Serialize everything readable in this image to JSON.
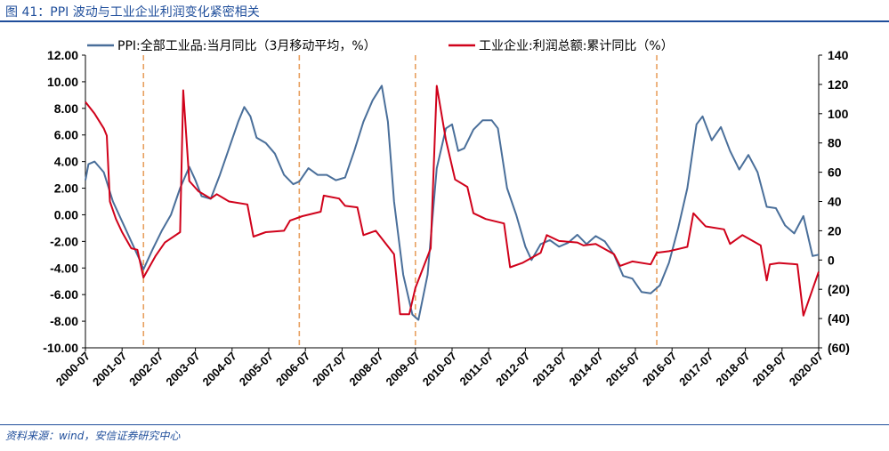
{
  "figure": {
    "title": "图 41：PPI 波动与工业企业利润变化紧密相关",
    "source": "资料来源：wind，安信证券研究中心"
  },
  "chart_data": {
    "type": "line",
    "colors": {
      "ppi": "#4a6f9a",
      "profit": "#d0021b",
      "guide": "#e8a060",
      "negative_right": "#d0021b"
    },
    "left_axis": {
      "ylim": [
        -10,
        12
      ],
      "ticks": [
        "12.00",
        "10.00",
        "8.00",
        "6.00",
        "4.00",
        "2.00",
        "0.00",
        "-2.00",
        "-4.00",
        "-6.00",
        "-8.00",
        "-10.00"
      ]
    },
    "right_axis": {
      "ylim": [
        -60,
        140
      ],
      "ticks": [
        "140",
        "120",
        "100",
        "80",
        "60",
        "40",
        "20",
        "0",
        "(20)",
        "(40)",
        "(60)"
      ]
    },
    "x_ticks": [
      "2000-07",
      "2001-07",
      "2002-07",
      "2003-07",
      "2004-07",
      "2005-07",
      "2006-07",
      "2007-07",
      "2008-07",
      "2009-07",
      "2010-07",
      "2011-07",
      "2012-07",
      "2013-07",
      "2014-07",
      "2015-07",
      "2016-07",
      "2017-07",
      "2018-07",
      "2019-07",
      "2020-07"
    ],
    "vertical_guides": [
      "2002-02",
      "2006-05",
      "2009-07",
      "2016-02"
    ],
    "legend": "top",
    "series": [
      {
        "name": "PPI:全部工业品:当月同比（3月移动平均，%）",
        "axis": "left",
        "points": [
          [
            "2000-07",
            2.6
          ],
          [
            "2000-08",
            3.8
          ],
          [
            "2000-10",
            4.0
          ],
          [
            "2001-01",
            3.2
          ],
          [
            "2001-04",
            1.0
          ],
          [
            "2001-07",
            -0.5
          ],
          [
            "2001-10",
            -2.0
          ],
          [
            "2002-01",
            -3.5
          ],
          [
            "2002-02",
            -4.1
          ],
          [
            "2002-05",
            -2.6
          ],
          [
            "2002-08",
            -1.2
          ],
          [
            "2002-11",
            0.0
          ],
          [
            "2003-02",
            2.0
          ],
          [
            "2003-05",
            3.6
          ],
          [
            "2003-07",
            2.6
          ],
          [
            "2003-09",
            1.4
          ],
          [
            "2003-12",
            1.2
          ],
          [
            "2004-03",
            3.0
          ],
          [
            "2004-06",
            5.0
          ],
          [
            "2004-09",
            7.0
          ],
          [
            "2004-11",
            8.1
          ],
          [
            "2005-01",
            7.4
          ],
          [
            "2005-03",
            5.8
          ],
          [
            "2005-06",
            5.4
          ],
          [
            "2005-09",
            4.6
          ],
          [
            "2005-12",
            3.0
          ],
          [
            "2006-03",
            2.3
          ],
          [
            "2006-05",
            2.5
          ],
          [
            "2006-08",
            3.5
          ],
          [
            "2006-11",
            3.0
          ],
          [
            "2007-02",
            3.0
          ],
          [
            "2007-05",
            2.6
          ],
          [
            "2007-08",
            2.8
          ],
          [
            "2007-11",
            4.8
          ],
          [
            "2008-02",
            7.0
          ],
          [
            "2008-05",
            8.6
          ],
          [
            "2008-08",
            9.7
          ],
          [
            "2008-10",
            7.0
          ],
          [
            "2008-12",
            1.0
          ],
          [
            "2009-03",
            -4.5
          ],
          [
            "2009-06",
            -7.5
          ],
          [
            "2009-08",
            -7.9
          ],
          [
            "2009-11",
            -4.5
          ],
          [
            "2010-02",
            3.5
          ],
          [
            "2010-05",
            6.5
          ],
          [
            "2010-07",
            6.8
          ],
          [
            "2010-09",
            4.8
          ],
          [
            "2010-11",
            5.0
          ],
          [
            "2011-02",
            6.4
          ],
          [
            "2011-05",
            7.1
          ],
          [
            "2011-08",
            7.1
          ],
          [
            "2011-10",
            6.5
          ],
          [
            "2012-01",
            2.0
          ],
          [
            "2012-04",
            0.0
          ],
          [
            "2012-07",
            -2.4
          ],
          [
            "2012-09",
            -3.4
          ],
          [
            "2012-12",
            -2.2
          ],
          [
            "2013-03",
            -1.9
          ],
          [
            "2013-06",
            -2.4
          ],
          [
            "2013-09",
            -2.1
          ],
          [
            "2013-12",
            -1.5
          ],
          [
            "2014-03",
            -2.2
          ],
          [
            "2014-06",
            -1.6
          ],
          [
            "2014-09",
            -2.0
          ],
          [
            "2014-12",
            -3.0
          ],
          [
            "2015-03",
            -4.6
          ],
          [
            "2015-06",
            -4.8
          ],
          [
            "2015-09",
            -5.8
          ],
          [
            "2015-12",
            -5.9
          ],
          [
            "2016-03",
            -5.3
          ],
          [
            "2016-06",
            -3.6
          ],
          [
            "2016-09",
            -1.0
          ],
          [
            "2016-12",
            2.0
          ],
          [
            "2017-03",
            6.8
          ],
          [
            "2017-05",
            7.4
          ],
          [
            "2017-08",
            5.6
          ],
          [
            "2017-11",
            6.6
          ],
          [
            "2018-02",
            4.8
          ],
          [
            "2018-05",
            3.4
          ],
          [
            "2018-08",
            4.5
          ],
          [
            "2018-11",
            3.2
          ],
          [
            "2019-02",
            0.6
          ],
          [
            "2019-05",
            0.5
          ],
          [
            "2019-08",
            -0.8
          ],
          [
            "2019-11",
            -1.4
          ],
          [
            "2020-02",
            -0.1
          ],
          [
            "2020-05",
            -3.1
          ],
          [
            "2020-07",
            -3.0
          ]
        ]
      },
      {
        "name": "工业企业:利润总额:累计同比（%）",
        "axis": "right",
        "points": [
          [
            "2000-07",
            108
          ],
          [
            "2000-10",
            100
          ],
          [
            "2001-01",
            90
          ],
          [
            "2001-02",
            85
          ],
          [
            "2001-03",
            40
          ],
          [
            "2001-05",
            28
          ],
          [
            "2001-07",
            19
          ],
          [
            "2001-10",
            8
          ],
          [
            "2001-12",
            7
          ],
          [
            "2002-02",
            -12
          ],
          [
            "2002-06",
            3
          ],
          [
            "2002-09",
            12
          ],
          [
            "2003-02",
            19
          ],
          [
            "2003-03",
            116
          ],
          [
            "2003-05",
            54
          ],
          [
            "2003-08",
            47
          ],
          [
            "2003-12",
            42
          ],
          [
            "2004-02",
            45
          ],
          [
            "2004-06",
            40
          ],
          [
            "2004-12",
            38
          ],
          [
            "2005-02",
            16
          ],
          [
            "2005-06",
            19
          ],
          [
            "2005-12",
            20
          ],
          [
            "2006-02",
            27
          ],
          [
            "2006-06",
            30
          ],
          [
            "2006-12",
            33
          ],
          [
            "2007-01",
            44
          ],
          [
            "2007-06",
            42
          ],
          [
            "2007-08",
            37
          ],
          [
            "2007-12",
            36
          ],
          [
            "2008-02",
            17
          ],
          [
            "2008-06",
            20
          ],
          [
            "2008-12",
            4
          ],
          [
            "2009-02",
            -37
          ],
          [
            "2009-05",
            -37
          ],
          [
            "2009-07",
            -19
          ],
          [
            "2009-12",
            8
          ],
          [
            "2010-02",
            119
          ],
          [
            "2010-05",
            82
          ],
          [
            "2010-08",
            55
          ],
          [
            "2010-12",
            50
          ],
          [
            "2011-02",
            32
          ],
          [
            "2011-06",
            28
          ],
          [
            "2011-12",
            25
          ],
          [
            "2012-02",
            -5
          ],
          [
            "2012-06",
            -2
          ],
          [
            "2012-12",
            5
          ],
          [
            "2013-02",
            17
          ],
          [
            "2013-06",
            13
          ],
          [
            "2013-12",
            12
          ],
          [
            "2014-02",
            10
          ],
          [
            "2014-06",
            11
          ],
          [
            "2014-12",
            4
          ],
          [
            "2015-02",
            -4
          ],
          [
            "2015-06",
            -1
          ],
          [
            "2015-12",
            -3
          ],
          [
            "2016-02",
            5
          ],
          [
            "2016-06",
            6
          ],
          [
            "2016-12",
            9
          ],
          [
            "2017-02",
            32
          ],
          [
            "2017-06",
            23
          ],
          [
            "2017-12",
            21
          ],
          [
            "2018-02",
            11
          ],
          [
            "2018-06",
            17
          ],
          [
            "2018-12",
            10
          ],
          [
            "2019-02",
            -14
          ],
          [
            "2019-03",
            -3
          ],
          [
            "2019-06",
            -2
          ],
          [
            "2019-12",
            -3
          ],
          [
            "2020-02",
            -38
          ],
          [
            "2020-05",
            -20
          ],
          [
            "2020-07",
            -8
          ]
        ]
      }
    ]
  }
}
